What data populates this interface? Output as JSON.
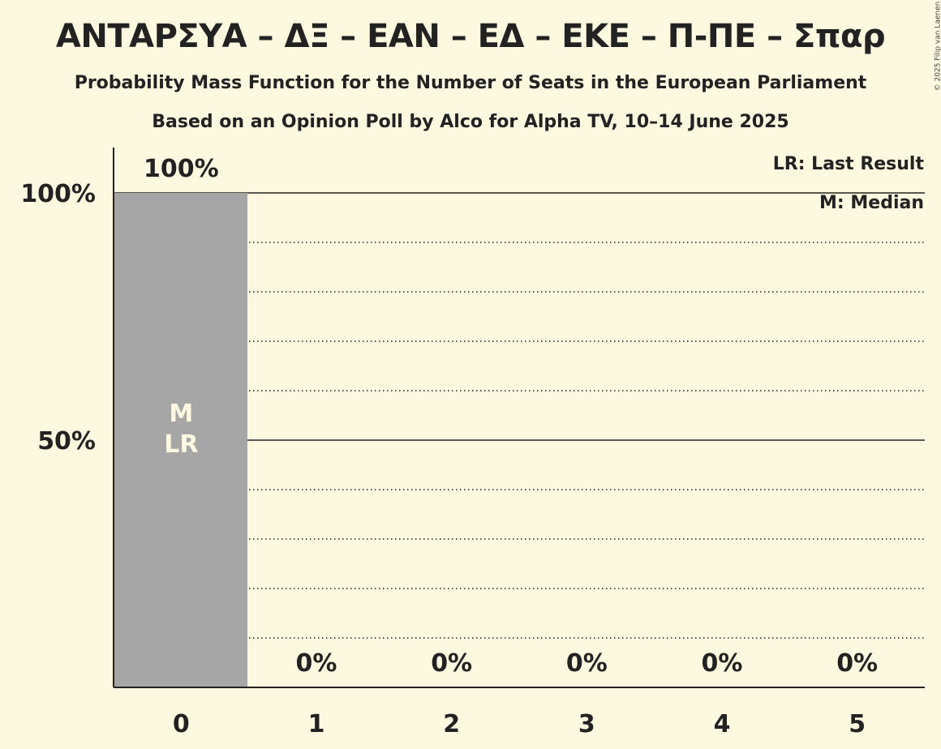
{
  "title": "ΑΝΤΑΡΣΥΑ – ΔΞ – ΕΑΝ – ΕΔ – ΕΚΕ – Π-ΠΕ – Σπαρ",
  "subtitle": "Probability Mass Function for the Number of Seats in the European Parliament",
  "subtitle2": "Based on an Opinion Poll by Alco for Alpha TV, 10–14 June 2025",
  "copyright": "© 2025 Filip van Laenen",
  "legend": {
    "lr": "LR: Last Result",
    "m": "M: Median"
  },
  "colors": {
    "background": "#fdf8e0",
    "bar": "#a6a6a6",
    "text": "#222222",
    "bar_label": "#fdf8e0"
  },
  "chart_data": {
    "type": "bar",
    "categories": [
      "0",
      "1",
      "2",
      "3",
      "4",
      "5"
    ],
    "values": [
      100,
      0,
      0,
      0,
      0,
      0
    ],
    "data_labels": [
      "100%",
      "0%",
      "0%",
      "0%",
      "0%",
      "0%"
    ],
    "ylim": [
      0,
      110
    ],
    "yticks": [
      {
        "value": 50,
        "label": "50%"
      },
      {
        "value": 100,
        "label": "100%"
      }
    ],
    "minor_gridlines": [
      10,
      20,
      30,
      40,
      60,
      70,
      80,
      90
    ],
    "major_gridlines": [
      50,
      100
    ],
    "median_index": 0,
    "last_result_index": 0,
    "median_marker": "M",
    "last_result_marker": "LR",
    "legend_position": "top-right"
  }
}
